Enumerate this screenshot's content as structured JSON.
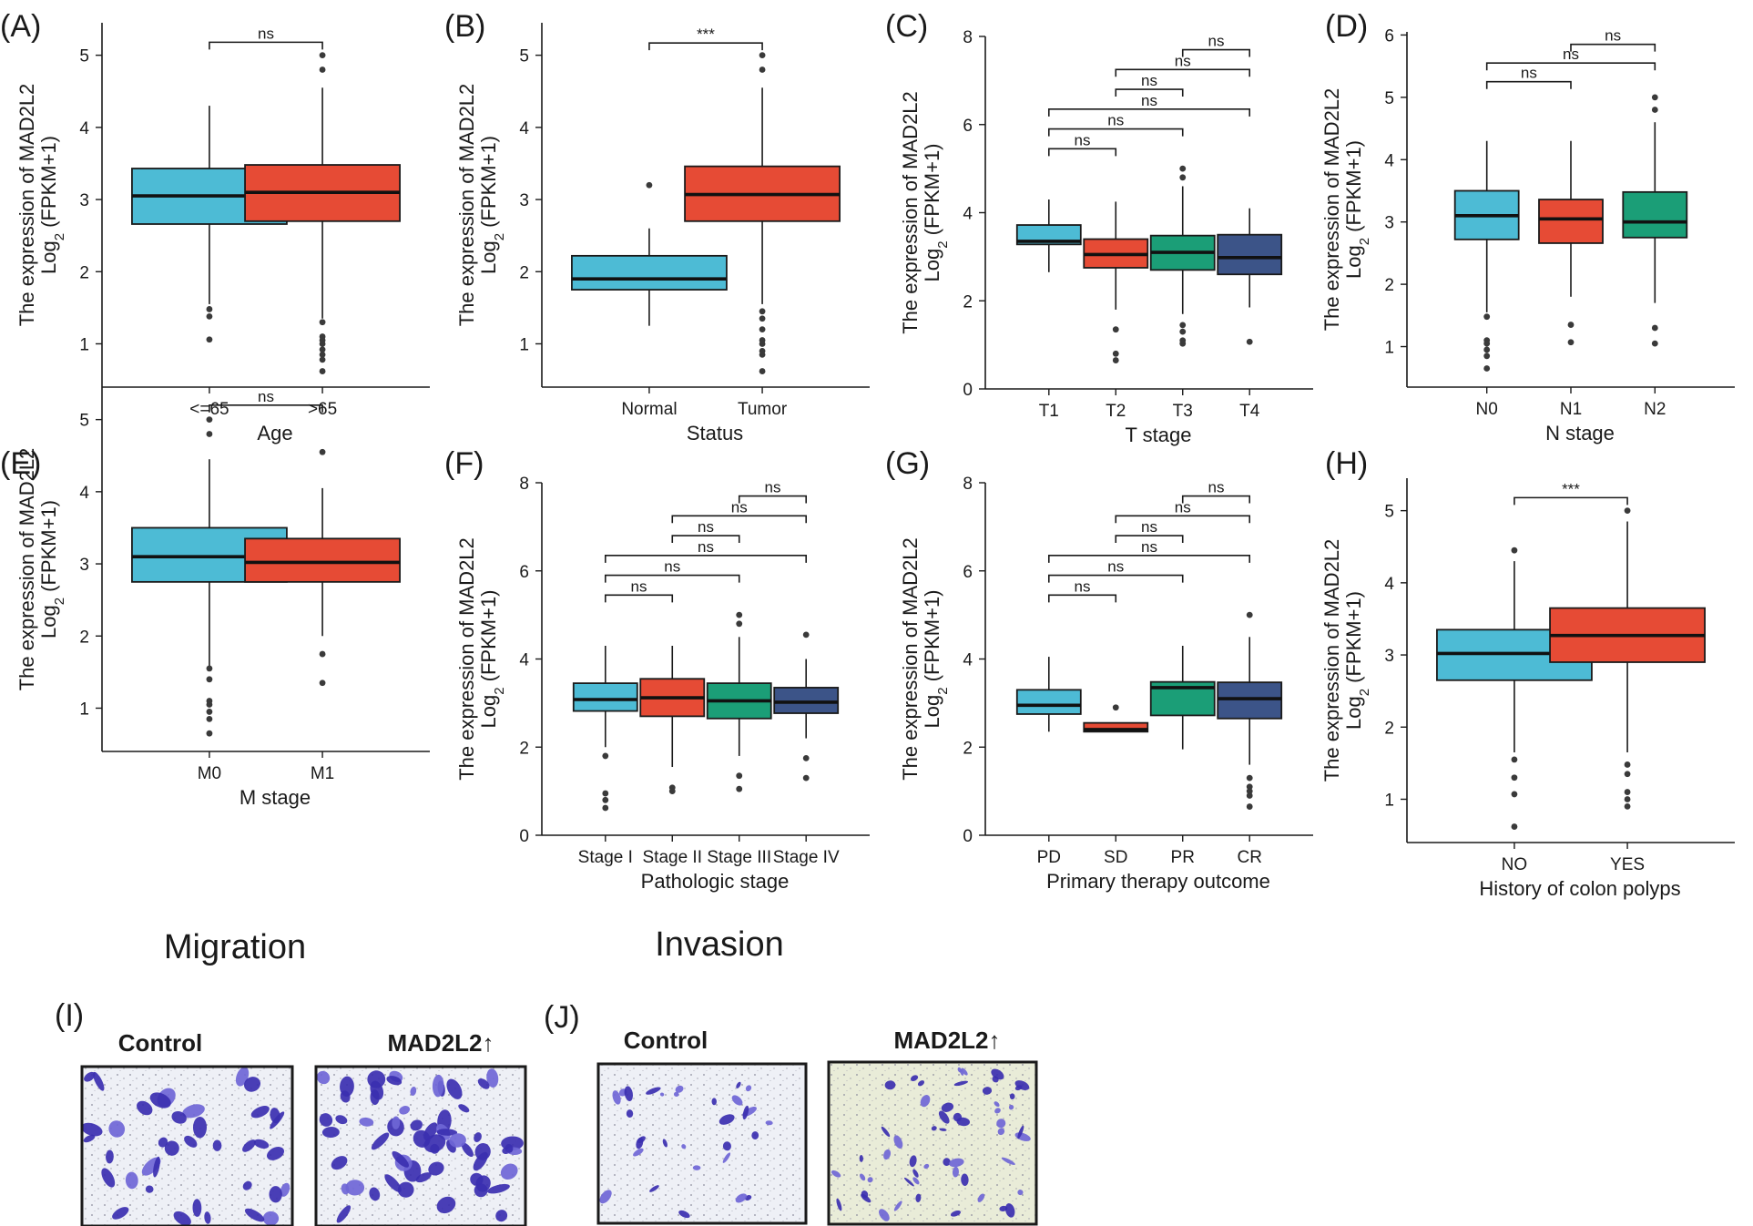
{
  "colors": {
    "blue": "#4dbbd5",
    "red": "#e64b35",
    "green": "#1b9e77",
    "navy": "#3c5488",
    "stain": "#3b2fb0",
    "stain_light": "#6f66d6",
    "bg_light": "#eef0f6",
    "bg_warm": "#e9ecd8"
  },
  "chart_data": [
    {
      "id": "A",
      "panel_label": "(A)",
      "type": "box",
      "ylabel_line1": "The expression of MAD2L2",
      "ylabel_pre": "Log",
      "ylabel_sub": "2",
      "ylabel_post": " (FPKM+1)",
      "xlabel": "Age",
      "ylim": [
        0.4,
        5.45
      ],
      "yticks": [
        1,
        2,
        3,
        4,
        5
      ],
      "ytick_labels": [
        "1",
        "2",
        "3",
        "4",
        "5"
      ],
      "categories": [
        "<=65",
        ">65"
      ],
      "boxes": [
        {
          "color": "blue",
          "q1": 2.66,
          "median": 3.05,
          "q3": 3.43,
          "lo": 1.55,
          "hi": 4.3,
          "outliers": [
            1.48,
            1.38,
            1.06
          ]
        },
        {
          "color": "red",
          "q1": 2.7,
          "median": 3.1,
          "q3": 3.48,
          "lo": 1.35,
          "hi": 4.55,
          "outliers": [
            5.0,
            4.8,
            1.3,
            1.1,
            1.05,
            1.0,
            0.92,
            0.85,
            0.78,
            0.62
          ]
        }
      ],
      "comparisons": [
        {
          "a": 0,
          "b": 1,
          "y": 5.18,
          "label": "ns"
        }
      ]
    },
    {
      "id": "B",
      "panel_label": "(B)",
      "type": "box",
      "ylabel_line1": "The expression of MAD2L2",
      "ylabel_pre": "Log",
      "ylabel_sub": "2",
      "ylabel_post": " (FPKM+1)",
      "xlabel": "Status",
      "ylim": [
        0.4,
        5.45
      ],
      "yticks": [
        1,
        2,
        3,
        4,
        5
      ],
      "ytick_labels": [
        "1",
        "2",
        "3",
        "4",
        "5"
      ],
      "categories": [
        "Normal",
        "Tumor"
      ],
      "boxes": [
        {
          "color": "blue",
          "q1": 1.75,
          "median": 1.9,
          "q3": 2.22,
          "lo": 1.25,
          "hi": 2.6,
          "outliers": [
            3.2
          ]
        },
        {
          "color": "red",
          "q1": 2.7,
          "median": 3.07,
          "q3": 3.46,
          "lo": 1.55,
          "hi": 4.55,
          "outliers": [
            5.0,
            4.8,
            1.45,
            1.35,
            1.2,
            1.05,
            1.0,
            0.9,
            0.85,
            0.62
          ]
        }
      ],
      "comparisons": [
        {
          "a": 0,
          "b": 1,
          "y": 5.17,
          "label": "***"
        }
      ]
    },
    {
      "id": "C",
      "panel_label": "(C)",
      "type": "box",
      "ylabel_line1": "The expression of MAD2L2",
      "ylabel_pre": "Log",
      "ylabel_sub": "2",
      "ylabel_post": " (FPKM+1)",
      "xlabel": "T stage",
      "ylim": [
        0,
        8
      ],
      "yticks": [
        0,
        2,
        4,
        6,
        8
      ],
      "ytick_labels": [
        "0",
        "2",
        "4",
        "6",
        "8"
      ],
      "categories": [
        "T1",
        "T2",
        "T3",
        "T4"
      ],
      "boxes": [
        {
          "color": "blue",
          "q1": 3.28,
          "median": 3.35,
          "q3": 3.72,
          "lo": 2.65,
          "hi": 4.3,
          "outliers": []
        },
        {
          "color": "red",
          "q1": 2.75,
          "median": 3.05,
          "q3": 3.4,
          "lo": 1.8,
          "hi": 4.25,
          "outliers": [
            1.35,
            0.8,
            0.65
          ]
        },
        {
          "color": "green",
          "q1": 2.7,
          "median": 3.1,
          "q3": 3.48,
          "lo": 1.7,
          "hi": 4.6,
          "outliers": [
            5.0,
            4.8,
            1.45,
            1.3,
            1.1,
            1.03
          ]
        },
        {
          "color": "navy",
          "q1": 2.6,
          "median": 2.98,
          "q3": 3.5,
          "lo": 1.85,
          "hi": 4.1,
          "outliers": [
            1.07
          ]
        }
      ],
      "comparisons": [
        {
          "a": 0,
          "b": 1,
          "y": 5.45,
          "label": "ns"
        },
        {
          "a": 0,
          "b": 2,
          "y": 5.9,
          "label": "ns"
        },
        {
          "a": 0,
          "b": 3,
          "y": 6.35,
          "label": "ns"
        },
        {
          "a": 1,
          "b": 2,
          "y": 6.8,
          "label": "ns"
        },
        {
          "a": 1,
          "b": 3,
          "y": 7.25,
          "label": "ns"
        },
        {
          "a": 2,
          "b": 3,
          "y": 7.7,
          "label": "ns"
        }
      ]
    },
    {
      "id": "D",
      "panel_label": "(D)",
      "type": "box",
      "ylabel_line1": "The expression of MAD2L2",
      "ylabel_pre": "Log",
      "ylabel_sub": "2",
      "ylabel_post": " (FPKM+1)",
      "xlabel": "N stage",
      "ylim": [
        0.35,
        6.05
      ],
      "yticks": [
        1,
        2,
        3,
        4,
        5,
        6
      ],
      "ytick_labels": [
        "1",
        "2",
        "3",
        "4",
        "5",
        "6"
      ],
      "categories": [
        "N0",
        "N1",
        "N2"
      ],
      "boxes": [
        {
          "color": "blue",
          "q1": 2.72,
          "median": 3.1,
          "q3": 3.5,
          "lo": 1.55,
          "hi": 4.3,
          "outliers": [
            1.48,
            1.1,
            1.05,
            0.95,
            0.85,
            0.65
          ]
        },
        {
          "color": "red",
          "q1": 2.66,
          "median": 3.05,
          "q3": 3.36,
          "lo": 1.8,
          "hi": 4.3,
          "outliers": [
            1.35,
            1.07
          ]
        },
        {
          "color": "green",
          "q1": 2.75,
          "median": 3.0,
          "q3": 3.48,
          "lo": 1.7,
          "hi": 4.6,
          "outliers": [
            5.0,
            4.8,
            1.3,
            1.05
          ]
        }
      ],
      "comparisons": [
        {
          "a": 0,
          "b": 1,
          "y": 5.25,
          "label": "ns"
        },
        {
          "a": 0,
          "b": 2,
          "y": 5.55,
          "label": "ns"
        },
        {
          "a": 1,
          "b": 2,
          "y": 5.85,
          "label": "ns"
        }
      ]
    },
    {
      "id": "E",
      "panel_label": "(E)",
      "type": "box",
      "ylabel_line1": "The expression of MAD2L2",
      "ylabel_pre": "Log",
      "ylabel_sub": "2",
      "ylabel_post": " (FPKM+1)",
      "xlabel": "M stage",
      "ylim": [
        0.4,
        5.45
      ],
      "yticks": [
        1,
        2,
        3,
        4,
        5
      ],
      "ytick_labels": [
        "1",
        "2",
        "3",
        "4",
        "5"
      ],
      "categories": [
        "M0",
        "M1"
      ],
      "boxes": [
        {
          "color": "blue",
          "q1": 2.75,
          "median": 3.1,
          "q3": 3.5,
          "lo": 1.55,
          "hi": 4.45,
          "outliers": [
            5.0,
            4.8,
            1.55,
            1.4,
            1.1,
            1.05,
            0.95,
            0.85,
            0.65
          ]
        },
        {
          "color": "red",
          "q1": 2.75,
          "median": 3.02,
          "q3": 3.35,
          "lo": 2.0,
          "hi": 4.05,
          "outliers": [
            4.55,
            1.75,
            1.35
          ]
        }
      ],
      "comparisons": [
        {
          "a": 0,
          "b": 1,
          "y": 5.2,
          "label": "ns"
        }
      ]
    },
    {
      "id": "F",
      "panel_label": "(F)",
      "type": "box",
      "ylabel_line1": "The expression of MAD2L2",
      "ylabel_pre": "Log",
      "ylabel_sub": "2",
      "ylabel_post": " (FPKM+1)",
      "xlabel": "Pathologic stage",
      "ylim": [
        0,
        8
      ],
      "yticks": [
        0,
        2,
        4,
        6,
        8
      ],
      "ytick_labels": [
        "0",
        "2",
        "4",
        "6",
        "8"
      ],
      "categories": [
        "Stage I",
        "Stage II",
        "Stage III",
        "Stage IV"
      ],
      "boxes": [
        {
          "color": "blue",
          "q1": 2.82,
          "median": 3.08,
          "q3": 3.45,
          "lo": 2.0,
          "hi": 4.3,
          "outliers": [
            1.8,
            0.95,
            0.8,
            0.62
          ]
        },
        {
          "color": "red",
          "q1": 2.7,
          "median": 3.12,
          "q3": 3.55,
          "lo": 1.55,
          "hi": 4.3,
          "outliers": [
            1.08,
            1.0
          ]
        },
        {
          "color": "green",
          "q1": 2.65,
          "median": 3.05,
          "q3": 3.45,
          "lo": 1.8,
          "hi": 4.5,
          "outliers": [
            5.0,
            4.8,
            1.35,
            1.05
          ]
        },
        {
          "color": "navy",
          "q1": 2.77,
          "median": 3.02,
          "q3": 3.35,
          "lo": 2.2,
          "hi": 4.0,
          "outliers": [
            4.55,
            1.75,
            1.3
          ]
        }
      ],
      "comparisons": [
        {
          "a": 0,
          "b": 1,
          "y": 5.45,
          "label": "ns"
        },
        {
          "a": 0,
          "b": 2,
          "y": 5.9,
          "label": "ns"
        },
        {
          "a": 0,
          "b": 3,
          "y": 6.35,
          "label": "ns"
        },
        {
          "a": 1,
          "b": 2,
          "y": 6.8,
          "label": "ns"
        },
        {
          "a": 1,
          "b": 3,
          "y": 7.25,
          "label": "ns"
        },
        {
          "a": 2,
          "b": 3,
          "y": 7.7,
          "label": "ns"
        }
      ]
    },
    {
      "id": "G",
      "panel_label": "(G)",
      "type": "box",
      "ylabel_line1": "The expression of MAD2L2",
      "ylabel_pre": "Log",
      "ylabel_sub": "2",
      "ylabel_post": " (FPKM+1)",
      "xlabel": "Primary therapy outcome",
      "ylim": [
        0,
        8
      ],
      "yticks": [
        0,
        2,
        4,
        6,
        8
      ],
      "ytick_labels": [
        "0",
        "2",
        "4",
        "6",
        "8"
      ],
      "categories": [
        "PD",
        "SD",
        "PR",
        "CR"
      ],
      "boxes": [
        {
          "color": "blue",
          "q1": 2.75,
          "median": 2.95,
          "q3": 3.3,
          "lo": 2.35,
          "hi": 4.05,
          "outliers": []
        },
        {
          "color": "red",
          "q1": 2.35,
          "median": 2.4,
          "q3": 2.55,
          "lo": 2.35,
          "hi": 2.55,
          "outliers": [
            2.9
          ]
        },
        {
          "color": "green",
          "q1": 2.72,
          "median": 3.35,
          "q3": 3.48,
          "lo": 1.95,
          "hi": 4.3,
          "outliers": []
        },
        {
          "color": "navy",
          "q1": 2.65,
          "median": 3.1,
          "q3": 3.47,
          "lo": 1.6,
          "hi": 4.5,
          "outliers": [
            5.0,
            1.3,
            1.1,
            1.0,
            0.9,
            0.65
          ]
        }
      ],
      "comparisons": [
        {
          "a": 0,
          "b": 1,
          "y": 5.45,
          "label": "ns"
        },
        {
          "a": 0,
          "b": 2,
          "y": 5.9,
          "label": "ns"
        },
        {
          "a": 0,
          "b": 3,
          "y": 6.35,
          "label": "ns"
        },
        {
          "a": 1,
          "b": 2,
          "y": 6.8,
          "label": "ns"
        },
        {
          "a": 1,
          "b": 3,
          "y": 7.25,
          "label": "ns"
        },
        {
          "a": 2,
          "b": 3,
          "y": 7.7,
          "label": "ns"
        }
      ]
    },
    {
      "id": "H",
      "panel_label": "(H)",
      "type": "box",
      "ylabel_line1": "The expression of MAD2L2",
      "ylabel_pre": "Log",
      "ylabel_sub": "2",
      "ylabel_post": " (FPKM+1)",
      "xlabel": "History of colon polyps",
      "ylim": [
        0.4,
        5.45
      ],
      "yticks": [
        1,
        2,
        3,
        4,
        5
      ],
      "ytick_labels": [
        "1",
        "2",
        "3",
        "4",
        "5"
      ],
      "categories": [
        "NO",
        "YES"
      ],
      "boxes": [
        {
          "color": "blue",
          "q1": 2.65,
          "median": 3.02,
          "q3": 3.35,
          "lo": 1.65,
          "hi": 4.3,
          "outliers": [
            4.45,
            1.55,
            1.3,
            1.07,
            0.62
          ]
        },
        {
          "color": "red",
          "q1": 2.9,
          "median": 3.27,
          "q3": 3.65,
          "lo": 1.65,
          "hi": 4.85,
          "outliers": [
            5.0,
            1.48,
            1.35,
            1.1,
            1.0,
            0.9
          ]
        }
      ],
      "comparisons": [
        {
          "a": 0,
          "b": 1,
          "y": 5.18,
          "label": "***"
        }
      ]
    }
  ],
  "assays": {
    "migration": {
      "title": "Migration",
      "panel_label": "(I)",
      "labels": [
        "Control",
        "MAD2L2↑"
      ],
      "blob_counts": [
        38,
        60
      ]
    },
    "invasion": {
      "title": "Invasion",
      "panel_label": "(J)",
      "labels": [
        "Control",
        "MAD2L2↑"
      ],
      "blob_counts": [
        30,
        55
      ]
    }
  }
}
